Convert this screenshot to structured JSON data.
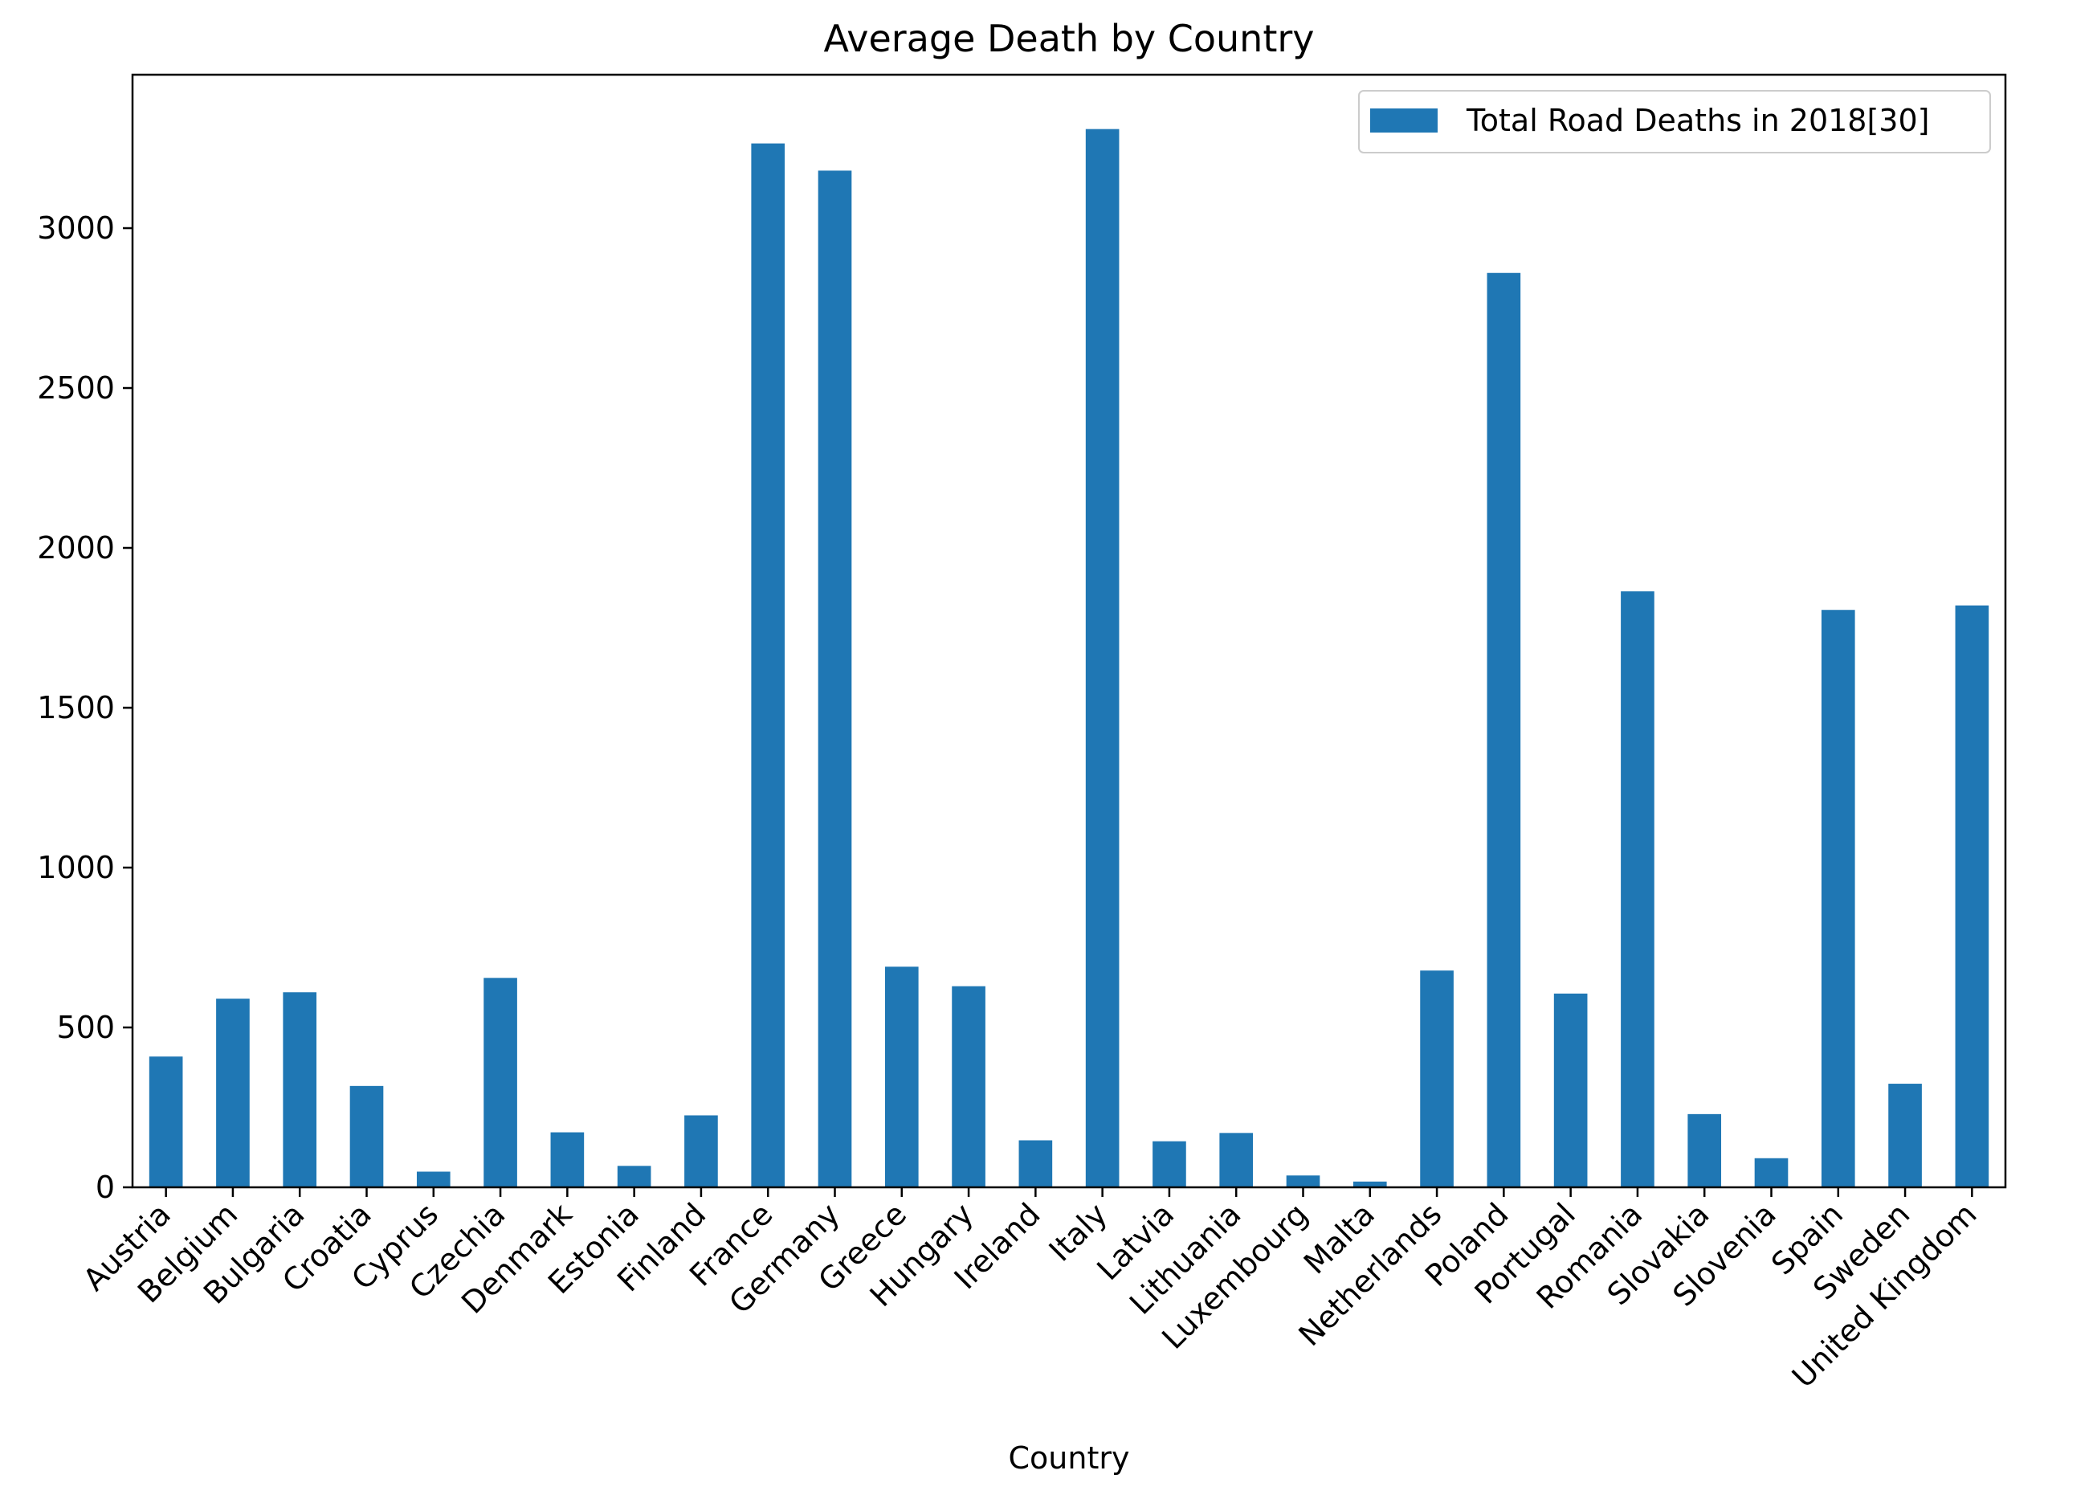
{
  "chart_data": {
    "type": "bar",
    "title": "Average Death by Country",
    "xlabel": "Country",
    "ylabel": "",
    "ylim": [
      0,
      3480
    ],
    "yticks": [
      0,
      500,
      1000,
      1500,
      2000,
      2500,
      3000
    ],
    "grid": false,
    "legend_position": "top-right",
    "colors": {
      "bar": "#1f77b4",
      "axis": "#000000",
      "background": "#ffffff"
    },
    "categories": [
      "Austria",
      "Belgium",
      "Bulgaria",
      "Croatia",
      "Cyprus",
      "Czechia",
      "Denmark",
      "Estonia",
      "Finland",
      "France",
      "Germany",
      "Greece",
      "Hungary",
      "Ireland",
      "Italy",
      "Latvia",
      "Lithuania",
      "Luxembourg",
      "Malta",
      "Netherlands",
      "Poland",
      "Portugal",
      "Romania",
      "Slovakia",
      "Slovenia",
      "Spain",
      "Sweden",
      "United Kingdom"
    ],
    "series": [
      {
        "name": "Total Road Deaths in 2018[30]",
        "values": [
          409,
          590,
          610,
          317,
          49,
          655,
          172,
          67,
          225,
          3265,
          3180,
          690,
          629,
          147,
          3310,
          144,
          170,
          37,
          18,
          678,
          2860,
          606,
          1864,
          229,
          91,
          1806,
          324,
          1820
        ]
      }
    ]
  }
}
